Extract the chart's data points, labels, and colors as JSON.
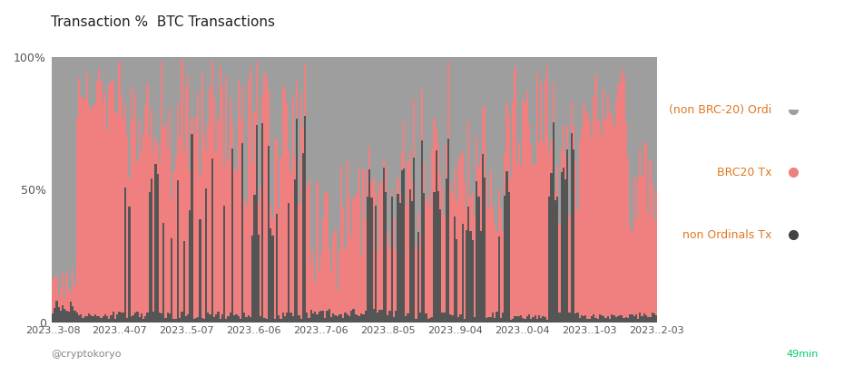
{
  "title": "Transaction %  BTC Transactions",
  "xlabel_ticks": [
    "2023..3-08",
    "2023..4-07",
    "2023..5-07",
    "2023..6-06",
    "2023..7-06",
    "2023..8-05",
    "2023..9-04",
    "2023..0-04",
    "2023..1-03",
    "2023..2-03"
  ],
  "ytick_labels": [
    "0",
    "50%",
    "100%"
  ],
  "ytick_values": [
    0,
    50,
    100
  ],
  "color_non_brc20_ordi": "#9e9e9e",
  "color_brc20": "#f08080",
  "color_non_ordinals": "#555555",
  "background_color": "#ffffff",
  "legend_labels": [
    "(non BRC-20) Ordi",
    "BRC20 Tx",
    "non Ordinals Tx"
  ],
  "legend_colors": [
    "#9e9e9e",
    "#f08080",
    "#444444"
  ],
  "legend_text_color": "#e07820",
  "footer_text": "@cryptokoryo",
  "footer_right": "49min",
  "footer_right_color": "#00cc66",
  "footer_left_color": "#888888",
  "title_color": "#222222",
  "axis_label_color": "#555555",
  "n_bars": 300
}
